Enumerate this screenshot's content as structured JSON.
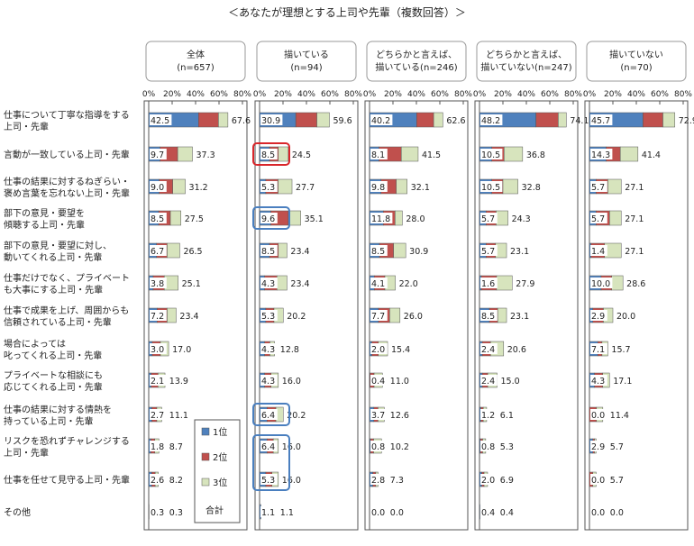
{
  "chart_data": {
    "type": "bar",
    "title": "＜あなたが理想とする上司や先輩（複数回答）＞",
    "xlim": [
      0,
      80
    ],
    "ticks": [
      "0%",
      "20%",
      "40%",
      "60%",
      "80%"
    ],
    "tick_values": [
      0,
      20,
      40,
      60,
      80
    ],
    "categories": [
      [
        "仕事について丁寧な指導をする",
        "上司・先輩"
      ],
      [
        "言動が一致している上司・先輩"
      ],
      [
        "仕事の結果に対するねぎらい・",
        "褒め言葉を忘れない上司・先輩"
      ],
      [
        "部下の意見・要望を",
        "傾聴する上司・先輩"
      ],
      [
        "部下の意見・要望に対し、",
        "動いてくれる上司・先輩"
      ],
      [
        "仕事だけでなく、プライベート",
        "も大事にする上司・先輩"
      ],
      [
        "仕事で成果を上げ、周囲からも",
        "信頼されている上司・先輩"
      ],
      [
        "場合によっては",
        "叱ってくれる上司・先輩"
      ],
      [
        "プライベートな相談にも",
        "応じてくれる上司・先輩"
      ],
      [
        "仕事の結果に対する情熱を",
        "持っている上司・先輩"
      ],
      [
        "リスクを恐れずチャレンジする",
        "上司・先輩"
      ],
      [
        "仕事を任せて見守る上司・先輩"
      ],
      [
        "その他"
      ]
    ],
    "legend": {
      "items": [
        {
          "name": "1位",
          "color": "#4f81bd"
        },
        {
          "name": "2位",
          "color": "#c0504d"
        },
        {
          "name": "3位",
          "color": "#d7e4bd"
        }
      ],
      "total_label": "合計",
      "placement": "inside-first-panel-bottom-right"
    },
    "panels": [
      {
        "header": [
          "全体",
          "(n=657)"
        ],
        "first_labels": [
          "42.5",
          "9.7",
          "9.0",
          "8.5",
          "6.7",
          "3.8",
          "7.2",
          "3.0",
          "2.1",
          "2.7",
          "1.8",
          "2.6",
          "0.3"
        ],
        "first": [
          42.5,
          9.7,
          9.0,
          8.5,
          6.7,
          3.8,
          7.2,
          3.0,
          2.1,
          2.7,
          1.8,
          2.6,
          0.3
        ],
        "second": [
          17.0,
          15.0,
          11.5,
          10.0,
          9.0,
          9.5,
          8.5,
          7.0,
          5.8,
          4.2,
          3.4,
          2.9,
          0.0
        ],
        "total_labels": [
          "67.6",
          "37.3",
          "31.2",
          "27.5",
          "26.5",
          "25.1",
          "23.4",
          "17.0",
          "13.9",
          "11.1",
          "8.7",
          "8.2",
          "0.3"
        ],
        "total": [
          67.6,
          37.3,
          31.2,
          27.5,
          26.5,
          25.1,
          23.4,
          17.0,
          13.9,
          11.1,
          8.7,
          8.2,
          0.3
        ],
        "highlights": []
      },
      {
        "header": [
          "描いている",
          "(n=94)"
        ],
        "first_labels": [
          "30.9",
          "8.5",
          "5.3",
          "9.6",
          "8.5",
          "4.3",
          "5.3",
          "4.3",
          "4.3",
          "6.4",
          "6.4",
          "5.3",
          "1.1"
        ],
        "first": [
          30.9,
          8.5,
          5.3,
          9.6,
          8.5,
          4.3,
          5.3,
          4.3,
          4.3,
          6.4,
          6.4,
          5.3,
          1.1
        ],
        "second": [
          18.0,
          7.5,
          10.5,
          15.0,
          7.5,
          10.5,
          7.0,
          4.5,
          5.5,
          7.5,
          5.3,
          5.3,
          0.0
        ],
        "total_labels": [
          "59.6",
          "24.5",
          "27.7",
          "35.1",
          "23.4",
          "23.4",
          "20.2",
          "12.8",
          "16.0",
          "20.2",
          "16.0",
          "16.0",
          "1.1"
        ],
        "total": [
          59.6,
          24.5,
          27.7,
          35.1,
          23.4,
          23.4,
          20.2,
          12.8,
          16.0,
          20.2,
          16.0,
          16.0,
          1.1
        ],
        "highlights": [
          {
            "rows": [
              1,
              1
            ],
            "color": "#d9262b"
          },
          {
            "rows": [
              3,
              3
            ],
            "color": "#4a7fbf"
          },
          {
            "rows": [
              9,
              9
            ],
            "color": "#4a7fbf"
          },
          {
            "rows": [
              10,
              11
            ],
            "color": "#4a7fbf"
          }
        ]
      },
      {
        "header": [
          "どちらかと言えば、",
          "描いている(n=246)"
        ],
        "first_labels": [
          "40.2",
          "8.1",
          "9.8",
          "11.8",
          "8.5",
          "4.1",
          "7.7",
          "2.0",
          "0.4",
          "3.7",
          "0.8",
          "2.8",
          "0.0"
        ],
        "first": [
          40.2,
          8.1,
          9.8,
          11.8,
          8.5,
          4.1,
          7.7,
          2.0,
          0.4,
          3.7,
          0.8,
          2.8,
          0.0
        ],
        "second": [
          14.5,
          19.0,
          13.0,
          10.0,
          12.0,
          9.0,
          9.5,
          5.5,
          3.5,
          3.5,
          2.7,
          2.5,
          0.0
        ],
        "total_labels": [
          "62.6",
          "41.5",
          "32.1",
          "28.0",
          "30.9",
          "22.0",
          "26.0",
          "15.4",
          "11.0",
          "12.6",
          "10.2",
          "7.3",
          "0.0"
        ],
        "total": [
          62.6,
          41.5,
          32.1,
          28.0,
          30.9,
          22.0,
          26.0,
          15.4,
          11.0,
          12.6,
          10.2,
          7.3,
          0.0
        ],
        "highlights": []
      },
      {
        "header": [
          "どちらかと言えば、",
          "描いていない(n=247)"
        ],
        "first_labels": [
          "48.2",
          "10.5",
          "10.5",
          "5.7",
          "5.7",
          "1.6",
          "8.5",
          "2.4",
          "2.4",
          "1.2",
          "0.8",
          "2.0",
          "0.4"
        ],
        "first": [
          48.2,
          10.5,
          10.5,
          5.7,
          5.7,
          1.6,
          8.5,
          2.4,
          2.4,
          1.2,
          0.8,
          2.0,
          0.4
        ],
        "second": [
          19.0,
          10.5,
          9.5,
          8.5,
          8.0,
          13.0,
          7.0,
          7.0,
          4.6,
          2.0,
          1.9,
          1.9,
          0.0
        ],
        "total_labels": [
          "74.1",
          "36.8",
          "32.8",
          "24.3",
          "23.1",
          "27.9",
          "23.1",
          "20.6",
          "15.0",
          "6.1",
          "5.3",
          "6.9",
          "0.4"
        ],
        "total": [
          74.1,
          36.8,
          32.8,
          24.3,
          23.1,
          27.9,
          23.1,
          20.6,
          15.0,
          6.1,
          5.3,
          6.9,
          0.4
        ],
        "highlights": []
      },
      {
        "header": [
          "描いていない",
          "(n=70)"
        ],
        "first_labels": [
          "45.7",
          "14.3",
          "5.7",
          "5.7",
          "1.4",
          "10.0",
          "2.9",
          "7.1",
          "4.3",
          "0.0",
          "2.9",
          "0.0",
          "0.0"
        ],
        "first": [
          45.7,
          14.3,
          5.7,
          5.7,
          1.4,
          10.0,
          2.9,
          7.1,
          4.3,
          0.0,
          2.9,
          0.0,
          0.0
        ],
        "second": [
          17.0,
          12.0,
          10.0,
          11.5,
          11.5,
          9.0,
          9.0,
          3.6,
          7.0,
          6.0,
          1.4,
          2.9,
          0.0
        ],
        "total_labels": [
          "72.9",
          "41.4",
          "27.1",
          "27.1",
          "27.1",
          "28.6",
          "20.0",
          "15.7",
          "17.1",
          "11.4",
          "5.7",
          "5.7",
          "0.0"
        ],
        "total": [
          72.9,
          41.4,
          27.1,
          27.1,
          27.1,
          28.6,
          20.0,
          15.7,
          17.1,
          11.4,
          5.7,
          5.7,
          0.0
        ],
        "highlights": []
      }
    ]
  }
}
